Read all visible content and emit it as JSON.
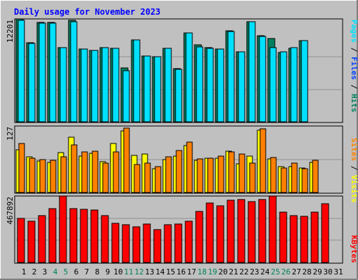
{
  "title": "Daily usage for November 2023",
  "colors": {
    "background": "#c0c0c0",
    "title": "#0000ff",
    "day_normal": "#000000",
    "day_weekend": "#00805c",
    "grid": "#909090",
    "hits": "#00805c",
    "files": "#0040ff",
    "pages": "#00e0ff",
    "visits": "#ffff00",
    "sites": "#ff8000",
    "kbytes": "#ff0000"
  },
  "chart_data": [
    {
      "type": "bar",
      "panel": "top",
      "y_label_text": "12201",
      "legend": [
        {
          "text": "Pages",
          "color": "#00e0ff"
        },
        {
          "text": "Files",
          "color": "#0040ff"
        },
        {
          "text": "Hits",
          "color": "#00805c"
        }
      ],
      "categories": [
        "1",
        "2",
        "3",
        "4",
        "5",
        "6",
        "7",
        "8",
        "9",
        "10",
        "11",
        "12",
        "13",
        "14",
        "15",
        "16",
        "17",
        "18",
        "19",
        "20",
        "21",
        "22",
        "23",
        "24",
        "25",
        "26",
        "27",
        "28",
        "29",
        "30",
        "31"
      ],
      "weekend_days": [
        "4",
        "5",
        "11",
        "12",
        "18",
        "19",
        "25",
        "26"
      ],
      "ylim": [
        0,
        12201
      ],
      "series": [
        {
          "name": "Hits",
          "color": "#00805c",
          "values": [
            12201,
            9420,
            11800,
            11800,
            8800,
            12050,
            8600,
            8500,
            8800,
            8700,
            6400,
            9700,
            7800,
            7700,
            8700,
            6300,
            10500,
            9100,
            8800,
            8600,
            10800,
            8300,
            11900,
            10200,
            9900,
            8200,
            8700,
            9600,
            null,
            null,
            null
          ]
        },
        {
          "name": "Pages",
          "color": "#00e0ff",
          "values": [
            12000,
            9300,
            11700,
            11700,
            8800,
            11900,
            8600,
            8500,
            8800,
            8700,
            6100,
            9700,
            7800,
            7700,
            8700,
            6200,
            10500,
            8900,
            8700,
            8600,
            10700,
            8300,
            11900,
            10100,
            8800,
            8300,
            8800,
            9600,
            null,
            null,
            null
          ]
        }
      ]
    },
    {
      "type": "bar",
      "panel": "middle",
      "y_label_text": "127",
      "legend": [
        {
          "text": "Sites",
          "color": "#ff8000"
        },
        {
          "text": "Visits",
          "color": "#ffff00"
        }
      ],
      "categories": [
        "1",
        "2",
        "3",
        "4",
        "5",
        "6",
        "7",
        "8",
        "9",
        "10",
        "11",
        "12",
        "13",
        "14",
        "15",
        "16",
        "17",
        "18",
        "19",
        "20",
        "21",
        "22",
        "23",
        "24",
        "25",
        "26",
        "27",
        "28",
        "29",
        "30",
        "31"
      ],
      "ylim": [
        0,
        127
      ],
      "series": [
        {
          "name": "Visits",
          "color": "#ffff00",
          "values": [
            82,
            68,
            60,
            57,
            76,
            106,
            69,
            75,
            59,
            94,
            117,
            71,
            73,
            46,
            63,
            70,
            90,
            62,
            65,
            66,
            79,
            55,
            70,
            119,
            64,
            49,
            49,
            47,
            57,
            null,
            null
          ]
        },
        {
          "name": "Sites",
          "color": "#ff8000",
          "values": [
            93,
            65,
            63,
            61,
            68,
            91,
            77,
            79,
            56,
            78,
            123,
            53,
            56,
            49,
            68,
            80,
            96,
            64,
            66,
            70,
            78,
            74,
            56,
            121,
            67,
            47,
            56,
            45,
            62,
            null,
            null
          ]
        }
      ]
    },
    {
      "type": "bar",
      "panel": "bottom",
      "y_label_text": "467892",
      "legend": [
        {
          "text": "KBytes",
          "color": "#ff0000"
        }
      ],
      "categories": [
        "1",
        "2",
        "3",
        "4",
        "5",
        "6",
        "7",
        "8",
        "9",
        "10",
        "11",
        "12",
        "13",
        "14",
        "15",
        "16",
        "17",
        "18",
        "19",
        "20",
        "21",
        "22",
        "23",
        "24",
        "25",
        "26",
        "27",
        "28",
        "29",
        "30",
        "31"
      ],
      "ylim": [
        0,
        467892
      ],
      "series": [
        {
          "name": "KBytes",
          "color": "#ff0000",
          "values": [
            310000,
            290000,
            330000,
            380000,
            467892,
            380000,
            375000,
            370000,
            330000,
            275000,
            265000,
            250000,
            270000,
            230000,
            265000,
            270000,
            290000,
            360000,
            420000,
            400000,
            440000,
            445000,
            430000,
            445000,
            467892,
            355000,
            330000,
            325000,
            355000,
            415000,
            null
          ]
        }
      ]
    }
  ]
}
